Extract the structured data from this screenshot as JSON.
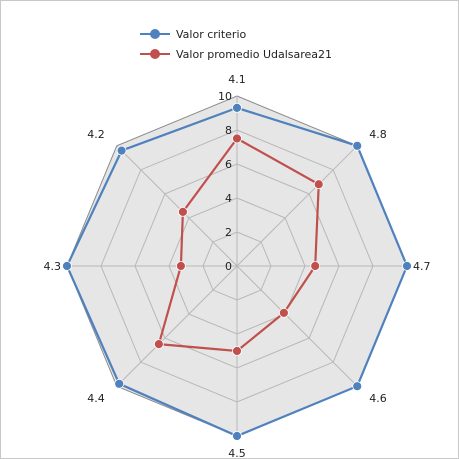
{
  "chart_data": {
    "type": "radar",
    "title": "",
    "categories": [
      "4.1",
      "4.8",
      "4.7",
      "4.6",
      "4.5",
      "4.4",
      "4.3",
      "4.2"
    ],
    "rlim": [
      0,
      10
    ],
    "rticks": [
      0,
      2,
      4,
      6,
      8,
      10
    ],
    "grid": true,
    "legend_position": "top-left",
    "series": [
      {
        "name": "Valor criterio",
        "color": "#4f81bd",
        "values": [
          9.3,
          10,
          10,
          10,
          10,
          9.8,
          10,
          9.6
        ]
      },
      {
        "name": "Valor promedio Udalsarea21",
        "color": "#c0504d",
        "values": [
          7.5,
          6.8,
          4.6,
          3.9,
          5.0,
          6.5,
          3.3,
          4.5
        ]
      }
    ]
  }
}
